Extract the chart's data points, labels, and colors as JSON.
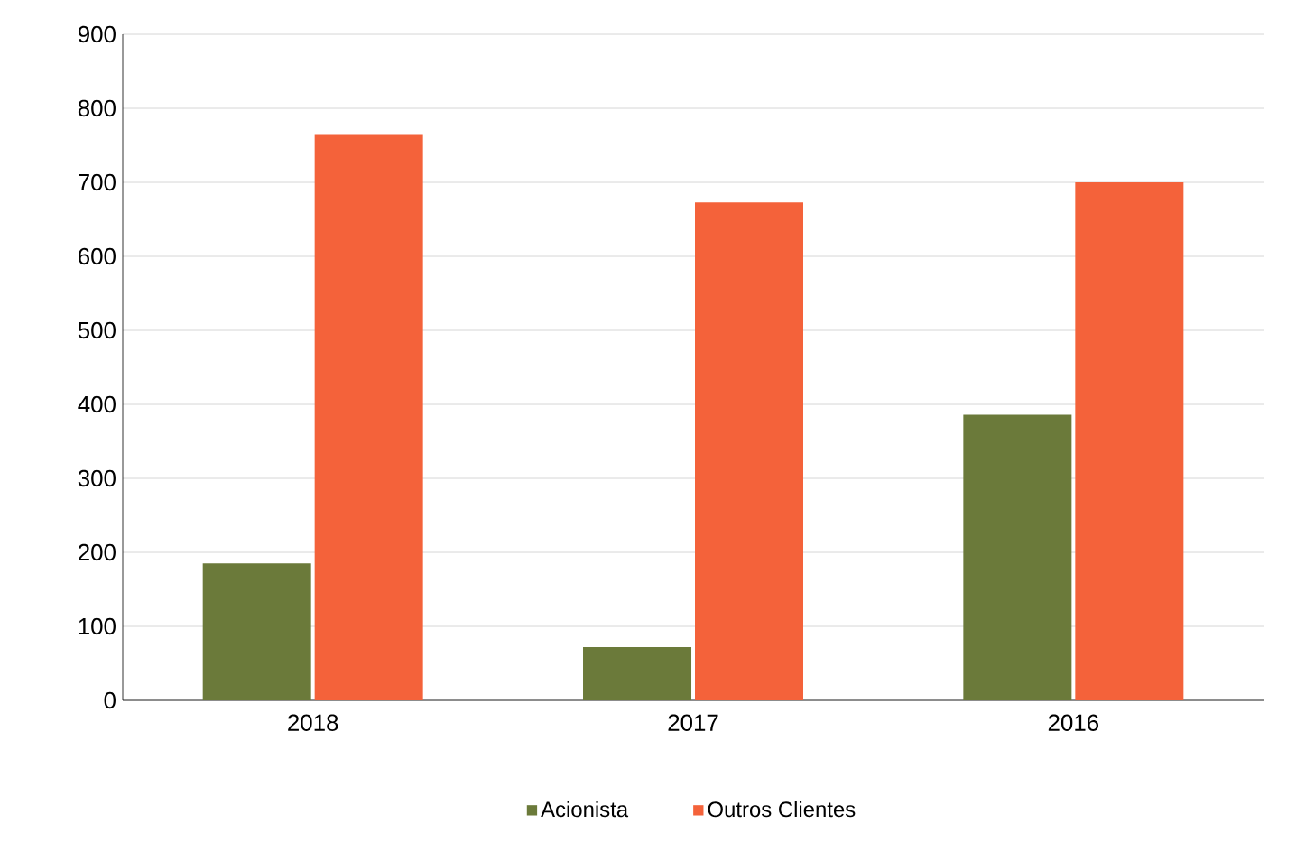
{
  "chart_data": {
    "type": "bar",
    "categories": [
      "2018",
      "2017",
      "2016"
    ],
    "series": [
      {
        "name": "Acionista",
        "color": "#6b7a3a",
        "values": [
          185,
          72,
          386
        ]
      },
      {
        "name": "Outros Clientes",
        "color": "#f4623a",
        "values": [
          764,
          673,
          700
        ]
      }
    ],
    "ylim": [
      0,
      900
    ],
    "yticks": [
      0,
      100,
      200,
      300,
      400,
      500,
      600,
      700,
      800,
      900
    ],
    "grid": "y",
    "legend": "bottom"
  }
}
